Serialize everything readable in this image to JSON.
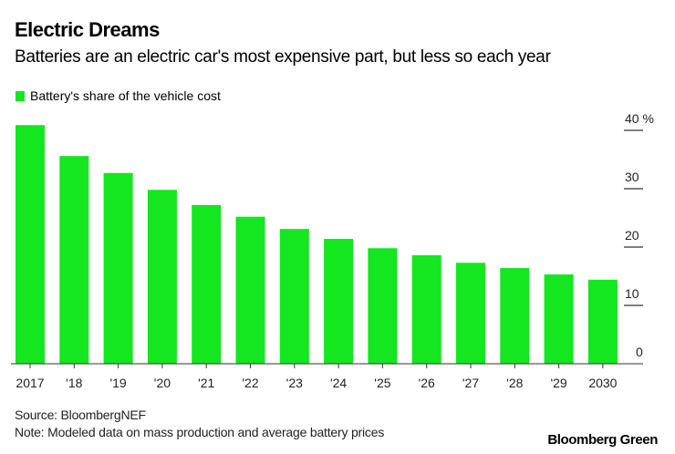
{
  "header": {
    "title": "Electric Dreams",
    "subtitle": "Batteries are an electric car's most expensive part, but less so each year"
  },
  "footer": {
    "source": "Source: BloombergNEF",
    "note": "Note: Modeled data on mass production and average battery prices",
    "brand": "Bloomberg Green"
  },
  "colors": {
    "bar": "#14E620",
    "axis": "#333333",
    "text": "#222222"
  },
  "chart_data": {
    "type": "bar",
    "title": "Electric Dreams",
    "subtitle": "Batteries are an electric car's most expensive part, but less so each year",
    "xlabel": "",
    "ylabel": "",
    "categories": [
      "2017",
      "'18",
      "'19",
      "'20",
      "'21",
      "'22",
      "'23",
      "'24",
      "'25",
      "'26",
      "'27",
      "'28",
      "'29",
      "2030"
    ],
    "series": [
      {
        "name": "Battery's share of the vehicle cost",
        "color": "#14E620",
        "values": [
          40.9,
          35.6,
          32.7,
          29.8,
          27.2,
          25.2,
          23.1,
          21.4,
          19.8,
          18.6,
          17.3,
          16.4,
          15.3,
          14.4
        ]
      }
    ],
    "ylim": [
      0,
      40
    ],
    "yticks": [
      0,
      10,
      20,
      30,
      40
    ],
    "ytick_labels": [
      "0",
      "10",
      "20",
      "30",
      "40 %"
    ],
    "y_axis_side": "right",
    "grid": false,
    "legend_position": "top-left"
  }
}
